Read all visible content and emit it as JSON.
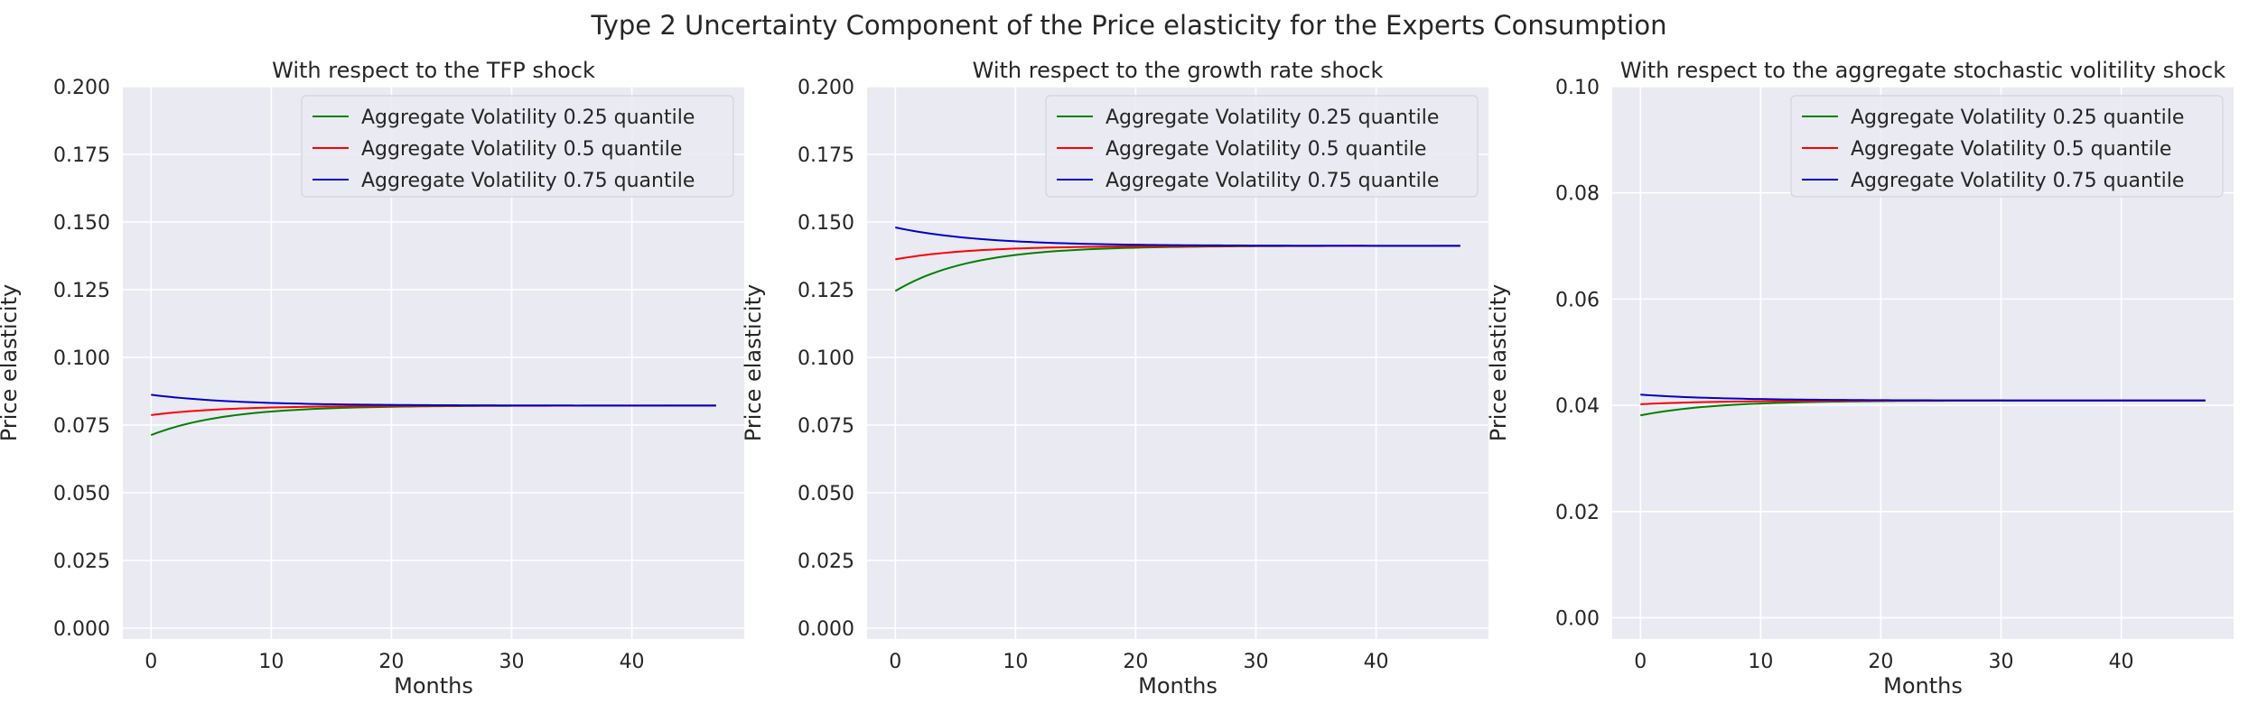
{
  "figure_title": "Type 2 Uncertainty Component of the Price elasticity for the Experts Consumption",
  "chart_data": [
    {
      "type": "line",
      "title": "With respect to the TFP shock",
      "xlabel": "Months",
      "ylabel": "Price elasticity",
      "xlim": [
        -2.35,
        49.35
      ],
      "ylim": [
        -0.004,
        0.2
      ],
      "xticks": [
        "0",
        "10",
        "20",
        "30",
        "40"
      ],
      "yticks": [
        "0.000",
        "0.025",
        "0.050",
        "0.075",
        "0.100",
        "0.125",
        "0.150",
        "0.175",
        "0.200"
      ],
      "grid": true,
      "legend_position": "top-right",
      "series": [
        {
          "name": "Aggregate Volatility 0.25 quantile",
          "color": "#008000",
          "start": 0.0713,
          "end": 0.0822,
          "rate": 0.16
        },
        {
          "name": "Aggregate Volatility 0.5 quantile",
          "color": "#ff0000",
          "start": 0.0787,
          "end": 0.0822,
          "rate": 0.16
        },
        {
          "name": "Aggregate Volatility 0.75 quantile",
          "color": "#0000c8",
          "start": 0.0862,
          "end": 0.0822,
          "rate": 0.14
        }
      ]
    },
    {
      "type": "line",
      "title": "With respect to the growth rate shock",
      "xlabel": "Months",
      "ylabel": "Price elasticity",
      "xlim": [
        -2.35,
        49.35
      ],
      "ylim": [
        -0.004,
        0.2
      ],
      "xticks": [
        "0",
        "10",
        "20",
        "30",
        "40"
      ],
      "yticks": [
        "0.000",
        "0.025",
        "0.050",
        "0.075",
        "0.100",
        "0.125",
        "0.150",
        "0.175",
        "0.200"
      ],
      "grid": true,
      "legend_position": "top-right",
      "series": [
        {
          "name": "Aggregate Volatility 0.25 quantile",
          "color": "#008000",
          "start": 0.1245,
          "end": 0.1412,
          "rate": 0.16
        },
        {
          "name": "Aggregate Volatility 0.5 quantile",
          "color": "#ff0000",
          "start": 0.1362,
          "end": 0.1412,
          "rate": 0.16
        },
        {
          "name": "Aggregate Volatility 0.75 quantile",
          "color": "#0000c8",
          "start": 0.148,
          "end": 0.1412,
          "rate": 0.14
        }
      ]
    },
    {
      "type": "line",
      "title": "With respect to the aggregate stochastic volitility shock",
      "xlabel": "Months",
      "ylabel": "Price elasticity",
      "xlim": [
        -2.35,
        49.35
      ],
      "ylim": [
        -0.004,
        0.1
      ],
      "xticks": [
        "0",
        "10",
        "20",
        "30",
        "40"
      ],
      "yticks": [
        "0.00",
        "0.02",
        "0.04",
        "0.06",
        "0.08",
        "0.10"
      ],
      "grid": true,
      "legend_position": "top-right",
      "series": [
        {
          "name": "Aggregate Volatility 0.25 quantile",
          "color": "#008000",
          "start": 0.0381,
          "end": 0.0409,
          "rate": 0.16
        },
        {
          "name": "Aggregate Volatility 0.5 quantile",
          "color": "#ff0000",
          "start": 0.0402,
          "end": 0.0409,
          "rate": 0.16
        },
        {
          "name": "Aggregate Volatility 0.75 quantile",
          "color": "#0000c8",
          "start": 0.042,
          "end": 0.0409,
          "rate": 0.14
        }
      ]
    }
  ]
}
